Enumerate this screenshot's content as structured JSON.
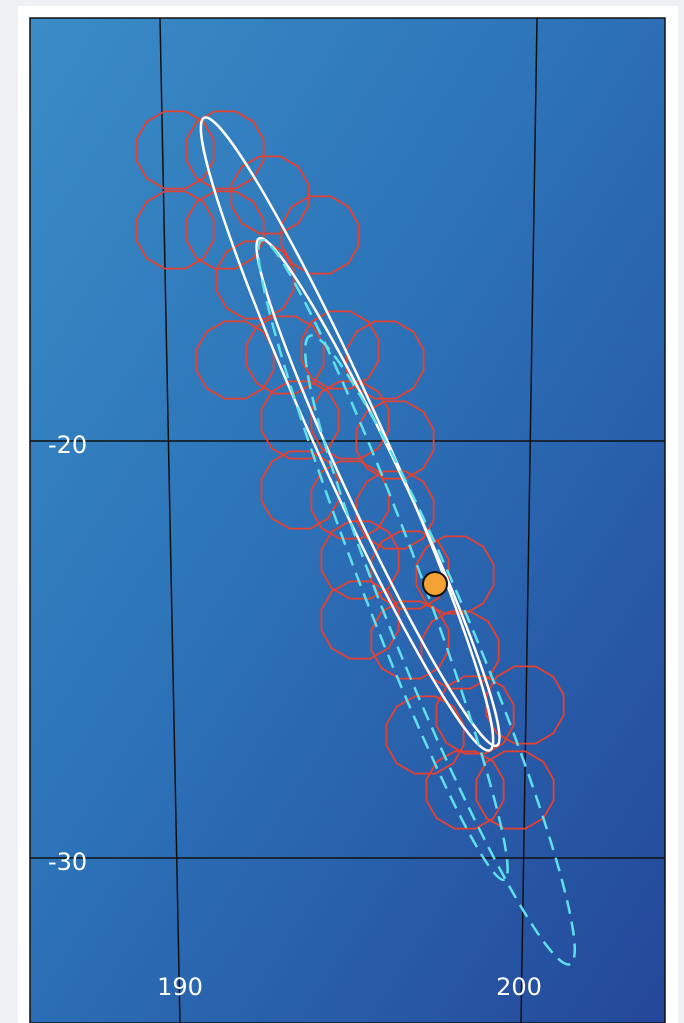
{
  "axes": {
    "y_labels": [
      "-20",
      "-30"
    ],
    "x_labels": [
      "190",
      "200"
    ]
  }
}
